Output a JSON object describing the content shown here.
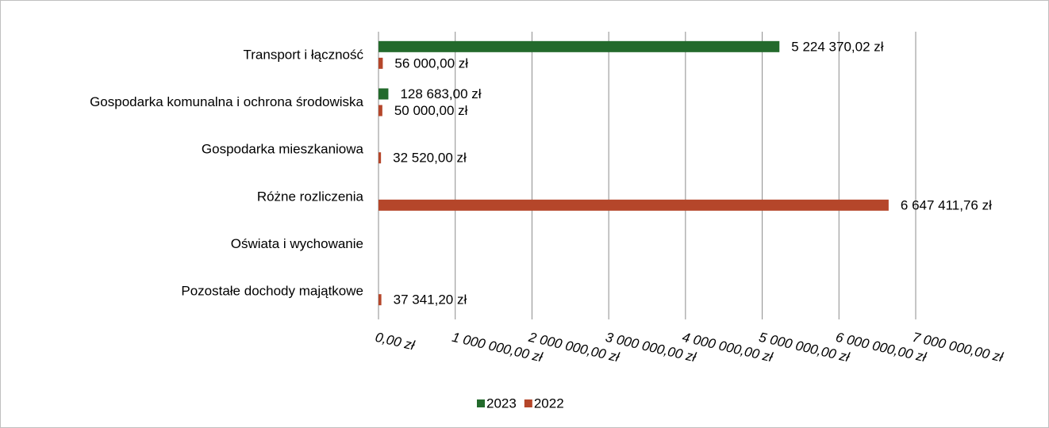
{
  "chart_data": {
    "type": "bar",
    "orientation": "horizontal",
    "categories": [
      "Transport i łączność",
      "Gospodarka komunalna i ochrona środowiska",
      "Gospodarka mieszkaniowa",
      "Różne rozliczenia",
      "Oświata i wychowanie",
      "Pozostałe dochody majątkowe"
    ],
    "series": [
      {
        "name": "2023",
        "color": "#236a2c",
        "values": [
          5224370.02,
          128683,
          null,
          null,
          null,
          null
        ],
        "value_labels": [
          "5 224 370,02 zł",
          "128 683,00 zł",
          null,
          null,
          null,
          null
        ]
      },
      {
        "name": "2022",
        "color": "#b5462a",
        "values": [
          56000,
          50000,
          32520,
          6647411.76,
          null,
          37341.2
        ],
        "value_labels": [
          "56 000,00 zł",
          "50 000,00 zł",
          "32 520,00 zł",
          "6 647 411,76 zł",
          null,
          "37 341,20 zł"
        ]
      }
    ],
    "xlim": [
      0,
      7000000
    ],
    "xticks": [
      {
        "value": 0,
        "label": "0,00 zł"
      },
      {
        "value": 1000000,
        "label": "1 000 000,00 zł"
      },
      {
        "value": 2000000,
        "label": "2 000 000,00 zł"
      },
      {
        "value": 3000000,
        "label": "3 000 000,00 zł"
      },
      {
        "value": 4000000,
        "label": "4 000 000,00 zł"
      },
      {
        "value": 5000000,
        "label": "5 000 000,00 zł"
      },
      {
        "value": 6000000,
        "label": "6 000 000,00 zł"
      },
      {
        "value": 7000000,
        "label": "7 000 000,00 zł"
      }
    ],
    "grid": true,
    "legend": "bottom"
  }
}
